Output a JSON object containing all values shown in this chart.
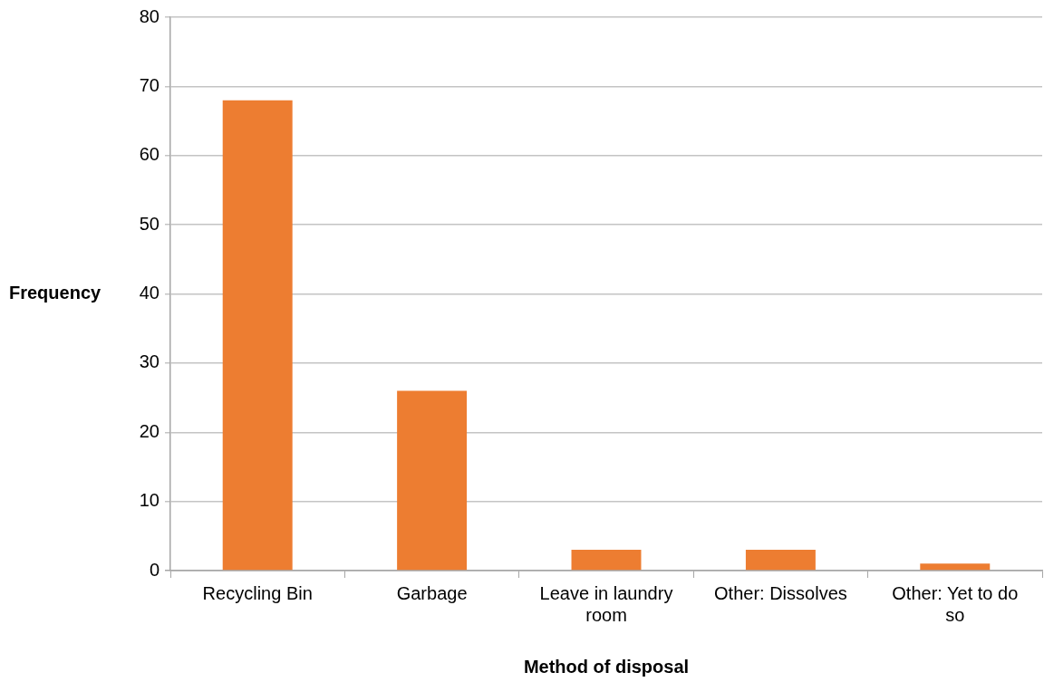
{
  "chart_data": {
    "type": "bar",
    "categories": [
      "Recycling Bin",
      "Garbage",
      "Leave in laundry room",
      "Other: Dissolves",
      "Other: Yet to do so"
    ],
    "values": [
      68,
      26,
      3,
      3,
      1
    ],
    "color": "#ed7d31",
    "xlabel": "Method of disposal",
    "ylabel": "Frequency",
    "ylim": [
      0,
      80
    ],
    "yticks": [
      0,
      10,
      20,
      30,
      40,
      50,
      60,
      70,
      80
    ],
    "grid": "y",
    "legend": false
  }
}
